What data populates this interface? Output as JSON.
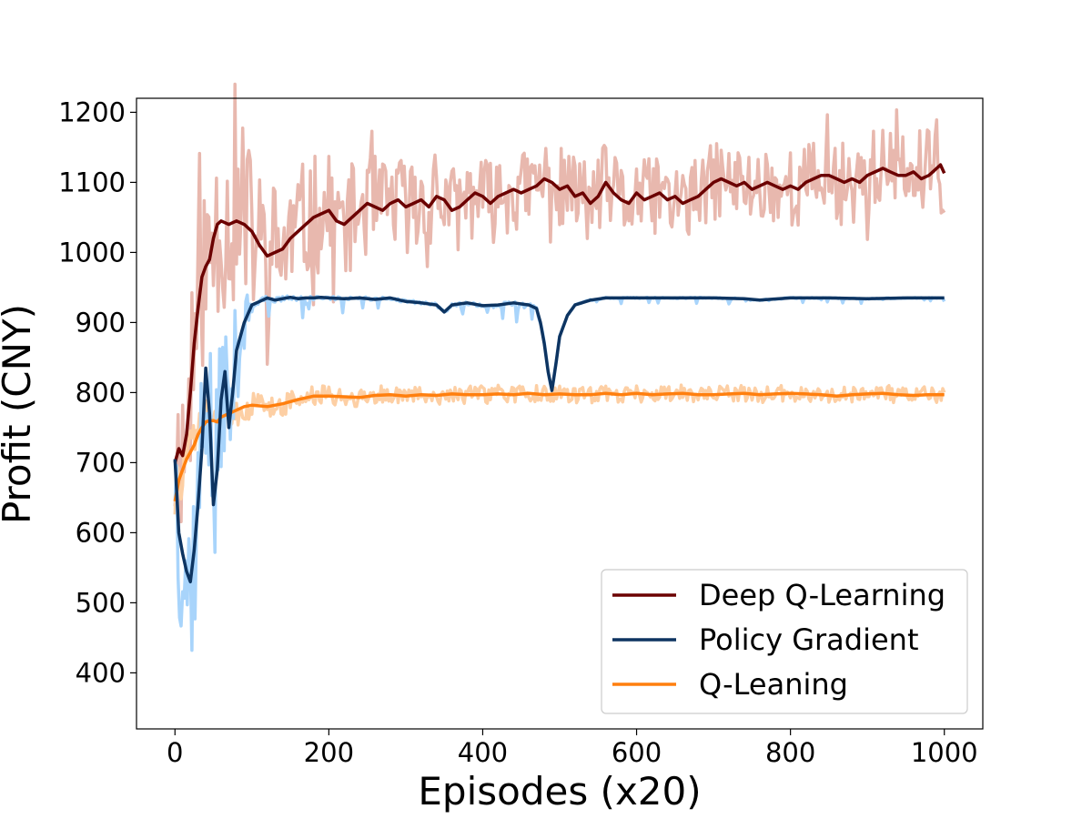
{
  "chart_data": {
    "type": "line",
    "title": "",
    "xlabel": "Episodes (x20)",
    "ylabel": "Profit (CNY)",
    "xlim": [
      -50,
      1050
    ],
    "ylim": [
      320,
      1220
    ],
    "xticks": [
      0,
      200,
      400,
      600,
      800,
      1000
    ],
    "yticks": [
      400,
      500,
      600,
      700,
      800,
      900,
      1000,
      1100,
      1200
    ],
    "grid": false,
    "legend_position": "lower-right",
    "legend_order": [
      "dql",
      "pg",
      "ql"
    ],
    "series": [
      {
        "key": "dql",
        "name": "Deep Q-Learning",
        "color": "#6b0000",
        "raw_color": "#e8b8ae",
        "smoothed": [
          [
            0,
            700
          ],
          [
            5,
            720
          ],
          [
            10,
            710
          ],
          [
            15,
            740
          ],
          [
            20,
            800
          ],
          [
            25,
            870
          ],
          [
            30,
            920
          ],
          [
            35,
            965
          ],
          [
            40,
            980
          ],
          [
            45,
            990
          ],
          [
            50,
            1020
          ],
          [
            55,
            1040
          ],
          [
            60,
            1045
          ],
          [
            70,
            1040
          ],
          [
            80,
            1045
          ],
          [
            90,
            1040
          ],
          [
            100,
            1030
          ],
          [
            110,
            1010
          ],
          [
            120,
            995
          ],
          [
            130,
            1000
          ],
          [
            140,
            1005
          ],
          [
            150,
            1020
          ],
          [
            160,
            1030
          ],
          [
            170,
            1040
          ],
          [
            180,
            1050
          ],
          [
            190,
            1055
          ],
          [
            200,
            1060
          ],
          [
            210,
            1045
          ],
          [
            220,
            1040
          ],
          [
            230,
            1050
          ],
          [
            240,
            1060
          ],
          [
            250,
            1070
          ],
          [
            260,
            1065
          ],
          [
            270,
            1060
          ],
          [
            280,
            1070
          ],
          [
            290,
            1075
          ],
          [
            300,
            1065
          ],
          [
            310,
            1070
          ],
          [
            320,
            1075
          ],
          [
            330,
            1065
          ],
          [
            340,
            1080
          ],
          [
            350,
            1075
          ],
          [
            360,
            1060
          ],
          [
            370,
            1065
          ],
          [
            380,
            1075
          ],
          [
            390,
            1085
          ],
          [
            400,
            1080
          ],
          [
            410,
            1070
          ],
          [
            420,
            1080
          ],
          [
            430,
            1085
          ],
          [
            440,
            1090
          ],
          [
            450,
            1085
          ],
          [
            460,
            1090
          ],
          [
            470,
            1095
          ],
          [
            480,
            1105
          ],
          [
            490,
            1100
          ],
          [
            500,
            1090
          ],
          [
            510,
            1095
          ],
          [
            520,
            1080
          ],
          [
            530,
            1085
          ],
          [
            540,
            1070
          ],
          [
            550,
            1080
          ],
          [
            560,
            1100
          ],
          [
            570,
            1085
          ],
          [
            580,
            1075
          ],
          [
            590,
            1070
          ],
          [
            600,
            1085
          ],
          [
            610,
            1075
          ],
          [
            620,
            1080
          ],
          [
            630,
            1085
          ],
          [
            640,
            1075
          ],
          [
            650,
            1080
          ],
          [
            660,
            1070
          ],
          [
            670,
            1075
          ],
          [
            680,
            1080
          ],
          [
            690,
            1090
          ],
          [
            700,
            1100
          ],
          [
            710,
            1105
          ],
          [
            720,
            1100
          ],
          [
            730,
            1095
          ],
          [
            740,
            1100
          ],
          [
            750,
            1090
          ],
          [
            760,
            1095
          ],
          [
            770,
            1100
          ],
          [
            780,
            1095
          ],
          [
            790,
            1090
          ],
          [
            800,
            1095
          ],
          [
            810,
            1090
          ],
          [
            820,
            1100
          ],
          [
            830,
            1105
          ],
          [
            840,
            1110
          ],
          [
            850,
            1110
          ],
          [
            860,
            1105
          ],
          [
            870,
            1100
          ],
          [
            880,
            1105
          ],
          [
            890,
            1100
          ],
          [
            900,
            1110
          ],
          [
            910,
            1115
          ],
          [
            920,
            1120
          ],
          [
            930,
            1115
          ],
          [
            940,
            1110
          ],
          [
            950,
            1110
          ],
          [
            960,
            1115
          ],
          [
            970,
            1105
          ],
          [
            980,
            1110
          ],
          [
            990,
            1120
          ],
          [
            995,
            1125
          ],
          [
            1000,
            1113
          ]
        ],
        "raw_band": [
          [
            0,
            120
          ],
          [
            40,
            140
          ],
          [
            100,
            120
          ],
          [
            200,
            80
          ],
          [
            400,
            60
          ],
          [
            800,
            55
          ],
          [
            1000,
            70
          ]
        ]
      },
      {
        "key": "pg",
        "name": "Policy Gradient",
        "color": "#0d3461",
        "raw_color": "#a8d4fb",
        "smoothed": [
          [
            0,
            705
          ],
          [
            5,
            600
          ],
          [
            10,
            570
          ],
          [
            15,
            545
          ],
          [
            20,
            530
          ],
          [
            25,
            575
          ],
          [
            30,
            640
          ],
          [
            35,
            720
          ],
          [
            40,
            835
          ],
          [
            45,
            770
          ],
          [
            50,
            640
          ],
          [
            55,
            690
          ],
          [
            60,
            790
          ],
          [
            65,
            830
          ],
          [
            70,
            750
          ],
          [
            75,
            800
          ],
          [
            80,
            860
          ],
          [
            90,
            900
          ],
          [
            100,
            925
          ],
          [
            110,
            930
          ],
          [
            120,
            935
          ],
          [
            130,
            932
          ],
          [
            140,
            934
          ],
          [
            150,
            936
          ],
          [
            160,
            934
          ],
          [
            170,
            935
          ],
          [
            180,
            935
          ],
          [
            190,
            936
          ],
          [
            200,
            935
          ],
          [
            220,
            934
          ],
          [
            240,
            935
          ],
          [
            260,
            933
          ],
          [
            280,
            935
          ],
          [
            300,
            930
          ],
          [
            320,
            928
          ],
          [
            340,
            925
          ],
          [
            350,
            915
          ],
          [
            360,
            925
          ],
          [
            380,
            928
          ],
          [
            400,
            924
          ],
          [
            420,
            925
          ],
          [
            440,
            928
          ],
          [
            460,
            925
          ],
          [
            470,
            920
          ],
          [
            475,
            900
          ],
          [
            480,
            870
          ],
          [
            485,
            830
          ],
          [
            490,
            803
          ],
          [
            495,
            840
          ],
          [
            500,
            880
          ],
          [
            510,
            910
          ],
          [
            520,
            925
          ],
          [
            540,
            932
          ],
          [
            560,
            935
          ],
          [
            600,
            935
          ],
          [
            650,
            935
          ],
          [
            700,
            935
          ],
          [
            740,
            934
          ],
          [
            760,
            932
          ],
          [
            800,
            935
          ],
          [
            850,
            935
          ],
          [
            900,
            934
          ],
          [
            950,
            935
          ],
          [
            1000,
            935
          ]
        ],
        "raw_band": [
          [
            0,
            120
          ],
          [
            40,
            150
          ],
          [
            80,
            80
          ],
          [
            100,
            20
          ],
          [
            200,
            12
          ],
          [
            400,
            12
          ],
          [
            480,
            15
          ],
          [
            500,
            5
          ],
          [
            1000,
            3
          ]
        ]
      },
      {
        "key": "ql",
        "name": "Q-Leaning",
        "color": "#ff7f0e",
        "raw_color": "#fdcfa4",
        "smoothed": [
          [
            0,
            645
          ],
          [
            5,
            675
          ],
          [
            10,
            690
          ],
          [
            15,
            705
          ],
          [
            20,
            715
          ],
          [
            25,
            725
          ],
          [
            30,
            740
          ],
          [
            35,
            750
          ],
          [
            40,
            758
          ],
          [
            45,
            760
          ],
          [
            50,
            760
          ],
          [
            55,
            758
          ],
          [
            60,
            765
          ],
          [
            70,
            770
          ],
          [
            80,
            775
          ],
          [
            90,
            780
          ],
          [
            100,
            782
          ],
          [
            120,
            780
          ],
          [
            140,
            784
          ],
          [
            160,
            790
          ],
          [
            180,
            795
          ],
          [
            200,
            795
          ],
          [
            220,
            794
          ],
          [
            240,
            793
          ],
          [
            260,
            796
          ],
          [
            280,
            797
          ],
          [
            300,
            795
          ],
          [
            320,
            797
          ],
          [
            340,
            796
          ],
          [
            360,
            798
          ],
          [
            380,
            797
          ],
          [
            400,
            797
          ],
          [
            420,
            798
          ],
          [
            440,
            797
          ],
          [
            460,
            799
          ],
          [
            480,
            797
          ],
          [
            500,
            798
          ],
          [
            520,
            797
          ],
          [
            540,
            797
          ],
          [
            560,
            799
          ],
          [
            580,
            797
          ],
          [
            600,
            799
          ],
          [
            620,
            797
          ],
          [
            640,
            798
          ],
          [
            660,
            799
          ],
          [
            680,
            797
          ],
          [
            700,
            797
          ],
          [
            720,
            798
          ],
          [
            740,
            799
          ],
          [
            760,
            797
          ],
          [
            780,
            798
          ],
          [
            800,
            799
          ],
          [
            820,
            798
          ],
          [
            840,
            797
          ],
          [
            860,
            795
          ],
          [
            880,
            797
          ],
          [
            900,
            798
          ],
          [
            920,
            799
          ],
          [
            940,
            797
          ],
          [
            960,
            796
          ],
          [
            980,
            797
          ],
          [
            1000,
            797
          ]
        ],
        "raw_band": [
          [
            0,
            40
          ],
          [
            50,
            30
          ],
          [
            100,
            20
          ],
          [
            200,
            14
          ],
          [
            500,
            12
          ],
          [
            1000,
            12
          ]
        ]
      }
    ]
  }
}
